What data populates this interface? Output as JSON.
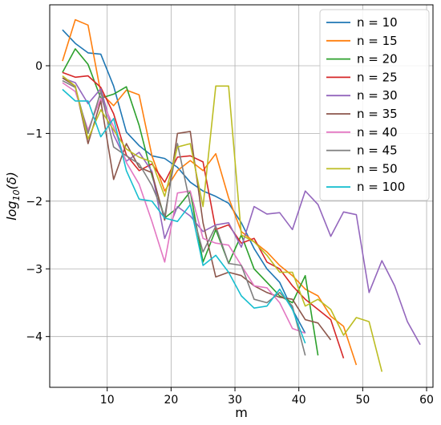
{
  "chart_data": {
    "type": "line",
    "xlabel": "m",
    "ylabel": "log10(δ)",
    "ylabel_parts": {
      "base": "log",
      "sub": "10",
      "arg": "(δ)"
    },
    "xlim": [
      1,
      61
    ],
    "ylim": [
      -4.75,
      0.9
    ],
    "xticks": [
      10,
      20,
      30,
      40,
      50,
      60
    ],
    "yticks": [
      0,
      -1,
      -2,
      -3,
      -4
    ],
    "xtick_labels": [
      "10",
      "20",
      "30",
      "40",
      "50",
      "60"
    ],
    "ytick_labels": [
      "0",
      "−1",
      "−2",
      "−3",
      "−4"
    ],
    "grid": true,
    "legend_position": "top-right",
    "series": [
      {
        "name": "n = 10",
        "color": "#1f77b4",
        "x": [
          3,
          5,
          7,
          9,
          11,
          13,
          15,
          17,
          19,
          21,
          23,
          25,
          27,
          29,
          31,
          33,
          35,
          37,
          39,
          41
        ],
        "y": [
          0.53,
          0.33,
          0.19,
          0.17,
          -0.3,
          -0.98,
          -1.18,
          -1.33,
          -1.37,
          -1.5,
          -1.72,
          -1.85,
          -1.93,
          -2.03,
          -2.32,
          -2.7,
          -3.0,
          -3.2,
          -3.6,
          -3.95
        ]
      },
      {
        "name": "n = 15",
        "color": "#ff7f0e",
        "x": [
          3,
          5,
          7,
          9,
          11,
          13,
          15,
          17,
          19,
          21,
          23,
          25,
          27,
          29,
          31,
          33,
          35,
          37,
          39,
          41,
          43,
          45,
          47,
          49
        ],
        "y": [
          0.07,
          0.68,
          0.6,
          -0.4,
          -0.59,
          -0.36,
          -0.43,
          -1.33,
          -1.85,
          -1.55,
          -1.4,
          -1.55,
          -1.3,
          -1.95,
          -2.45,
          -2.6,
          -2.75,
          -2.95,
          -3.1,
          -3.3,
          -3.4,
          -3.7,
          -3.85,
          -4.42
        ]
      },
      {
        "name": "n = 20",
        "color": "#2ca02c",
        "x": [
          3,
          5,
          7,
          9,
          11,
          13,
          15,
          17,
          19,
          21,
          23,
          25,
          27,
          29,
          31,
          33,
          35,
          37,
          39,
          41,
          43
        ],
        "y": [
          -0.1,
          0.25,
          0.02,
          -0.48,
          -0.42,
          -0.31,
          -0.88,
          -1.62,
          -2.25,
          -2.1,
          -1.86,
          -2.9,
          -2.42,
          -2.92,
          -2.5,
          -3.0,
          -3.2,
          -3.4,
          -3.5,
          -3.1,
          -4.28
        ]
      },
      {
        "name": "n = 25",
        "color": "#d62728",
        "x": [
          3,
          5,
          7,
          9,
          11,
          13,
          15,
          17,
          19,
          21,
          23,
          25,
          27,
          29,
          31,
          33,
          35,
          37,
          39,
          41,
          43,
          45,
          47
        ],
        "y": [
          -0.1,
          -0.17,
          -0.15,
          -0.32,
          -0.71,
          -1.32,
          -1.55,
          -1.45,
          -1.72,
          -1.35,
          -1.33,
          -1.42,
          -2.42,
          -2.35,
          -2.62,
          -2.55,
          -2.9,
          -3.0,
          -3.25,
          -3.45,
          -3.6,
          -3.75,
          -4.32
        ]
      },
      {
        "name": "n = 30",
        "color": "#9467bd",
        "x": [
          3,
          5,
          7,
          9,
          11,
          13,
          15,
          17,
          19,
          21,
          23,
          25,
          27,
          29,
          31,
          33,
          35,
          37,
          39,
          41,
          43,
          45,
          47,
          49,
          51,
          53,
          55,
          57,
          59
        ],
        "y": [
          -0.18,
          -0.25,
          -0.56,
          -0.34,
          -1.02,
          -1.41,
          -1.28,
          -1.56,
          -2.55,
          -2.08,
          -2.22,
          -2.45,
          -2.35,
          -2.32,
          -2.68,
          -2.08,
          -2.19,
          -2.17,
          -2.42,
          -1.85,
          -2.05,
          -2.52,
          -2.16,
          -2.2,
          -3.35,
          -2.88,
          -3.25,
          -3.78,
          -4.12
        ]
      },
      {
        "name": "n = 35",
        "color": "#8c564b",
        "x": [
          3,
          5,
          7,
          9,
          11,
          13,
          15,
          17,
          19,
          21,
          23,
          25,
          27,
          29,
          31,
          33,
          35,
          37,
          39,
          41,
          43,
          45
        ],
        "y": [
          -0.18,
          -0.3,
          -1.15,
          -0.52,
          -1.68,
          -1.15,
          -1.5,
          -1.58,
          -2.28,
          -1.0,
          -0.97,
          -2.32,
          -3.12,
          -3.05,
          -3.1,
          -3.25,
          -3.35,
          -3.42,
          -3.45,
          -3.75,
          -3.8,
          -4.05
        ]
      },
      {
        "name": "n = 40",
        "color": "#e377c2",
        "x": [
          3,
          5,
          7,
          9,
          11,
          13,
          15,
          17,
          19,
          21,
          23,
          25,
          27,
          29,
          31,
          33,
          35,
          37,
          39,
          41
        ],
        "y": [
          -0.25,
          -0.38,
          -0.95,
          -0.48,
          -0.9,
          -1.43,
          -1.75,
          -2.3,
          -2.9,
          -1.88,
          -1.85,
          -2.55,
          -2.62,
          -2.65,
          -2.95,
          -3.25,
          -3.28,
          -3.5,
          -3.88,
          -3.95
        ]
      },
      {
        "name": "n = 45",
        "color": "#7f7f7f",
        "x": [
          3,
          5,
          7,
          9,
          11,
          13,
          15,
          17,
          19,
          21,
          23,
          25,
          27,
          29,
          31,
          33,
          35,
          37,
          39,
          41
        ],
        "y": [
          -0.22,
          -0.32,
          -1.0,
          -0.38,
          -1.2,
          -1.33,
          -1.45,
          -1.77,
          -2.22,
          -1.15,
          -2.05,
          -2.75,
          -2.37,
          -2.92,
          -2.95,
          -3.45,
          -3.5,
          -3.35,
          -3.55,
          -4.28
        ]
      },
      {
        "name": "n = 50",
        "color": "#bcbd22",
        "x": [
          3,
          5,
          7,
          9,
          11,
          13,
          15,
          17,
          19,
          21,
          23,
          25,
          27,
          28,
          29,
          31,
          33,
          35,
          37,
          39,
          41,
          43,
          45,
          47,
          49,
          51,
          53
        ],
        "y": [
          -0.15,
          -0.3,
          -1.08,
          -0.65,
          -0.95,
          -1.23,
          -1.35,
          -1.42,
          -1.93,
          -1.2,
          -1.15,
          -2.08,
          -0.3,
          -0.3,
          -0.3,
          -2.5,
          -2.6,
          -2.8,
          -3.05,
          -3.05,
          -3.55,
          -3.45,
          -3.6,
          -3.98,
          -3.72,
          -3.78,
          -4.52
        ]
      },
      {
        "name": "n = 100",
        "color": "#17becf",
        "x": [
          3,
          5,
          7,
          9,
          11,
          13,
          15,
          17,
          19,
          21,
          23,
          25,
          27,
          29,
          31,
          33,
          35,
          37,
          39,
          41
        ],
        "y": [
          -0.35,
          -0.52,
          -0.52,
          -1.05,
          -0.78,
          -1.55,
          -1.97,
          -2.0,
          -2.25,
          -2.3,
          -2.05,
          -2.95,
          -2.8,
          -3.05,
          -3.4,
          -3.58,
          -3.55,
          -3.3,
          -3.6,
          -4.1
        ]
      }
    ]
  }
}
